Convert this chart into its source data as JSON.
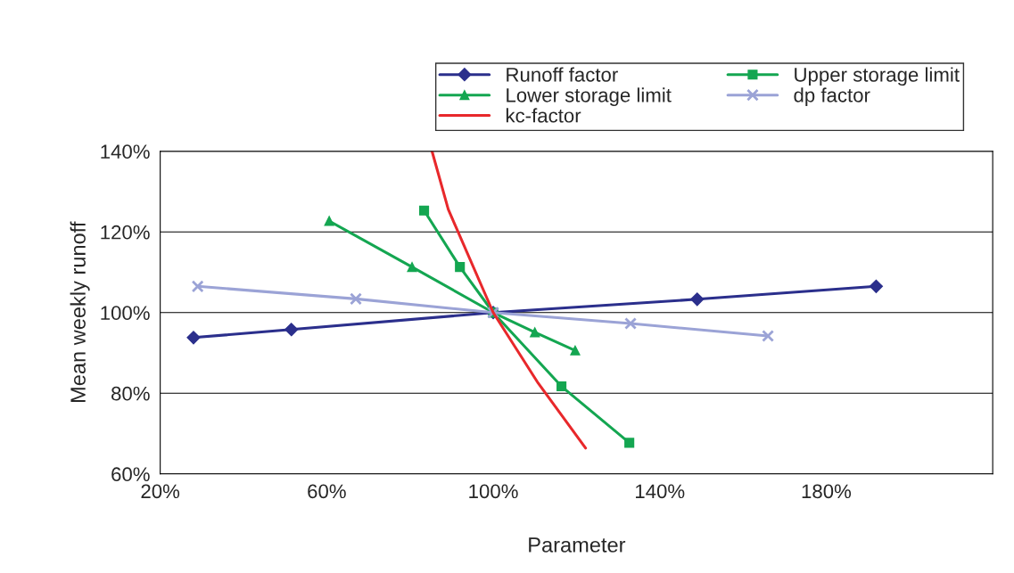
{
  "chart_data": {
    "type": "line",
    "xlabel": "Parameter",
    "ylabel": "Mean weekly runoff",
    "xlim": [
      20,
      220
    ],
    "xticks": [
      {
        "value": 20,
        "label": "20%"
      },
      {
        "value": 60,
        "label": "60%"
      },
      {
        "value": 100,
        "label": "100%"
      },
      {
        "value": 140,
        "label": "140%"
      },
      {
        "value": 180,
        "label": "180%"
      }
    ],
    "ylim": [
      60,
      140
    ],
    "yticks": [
      {
        "value": 60,
        "label": "60%"
      },
      {
        "value": 80,
        "label": "80%"
      },
      {
        "value": 100,
        "label": "100%"
      },
      {
        "value": 120,
        "label": "120%"
      },
      {
        "value": 140,
        "label": "140%"
      }
    ],
    "grid": "y",
    "legend": "top right",
    "series": [
      {
        "name": "Runoff factor",
        "color": "#2b2f8c",
        "marker": "diamond",
        "x": [
          28,
          51.5,
          100,
          149,
          192
        ],
        "values": [
          93.8,
          95.8,
          100,
          103.3,
          106.5
        ]
      },
      {
        "name": "Upper storage limit",
        "color": "#14a651",
        "marker": "square",
        "x": [
          83.4,
          92,
          100,
          116.4,
          132.7
        ],
        "values": [
          125.3,
          111.3,
          100,
          81.7,
          67.7
        ]
      },
      {
        "name": "Lower storage limit",
        "color": "#14a651",
        "marker": "triangle",
        "x": [
          60.6,
          80.5,
          100,
          110,
          119.7
        ],
        "values": [
          122.7,
          111.3,
          100,
          95.1,
          90.6
        ]
      },
      {
        "name": "dp factor",
        "color": "#9ba3d6",
        "marker": "cross",
        "x": [
          29,
          67,
          100,
          133,
          166
        ],
        "values": [
          106.5,
          103.4,
          100,
          97.3,
          94.2
        ]
      },
      {
        "name": "kc-factor",
        "color": "#e8282b",
        "marker": "none",
        "x": [
          85.3,
          89.2,
          100,
          110.8,
          122.2
        ],
        "values": [
          140,
          125.6,
          100,
          82.5,
          66.4
        ]
      }
    ]
  }
}
